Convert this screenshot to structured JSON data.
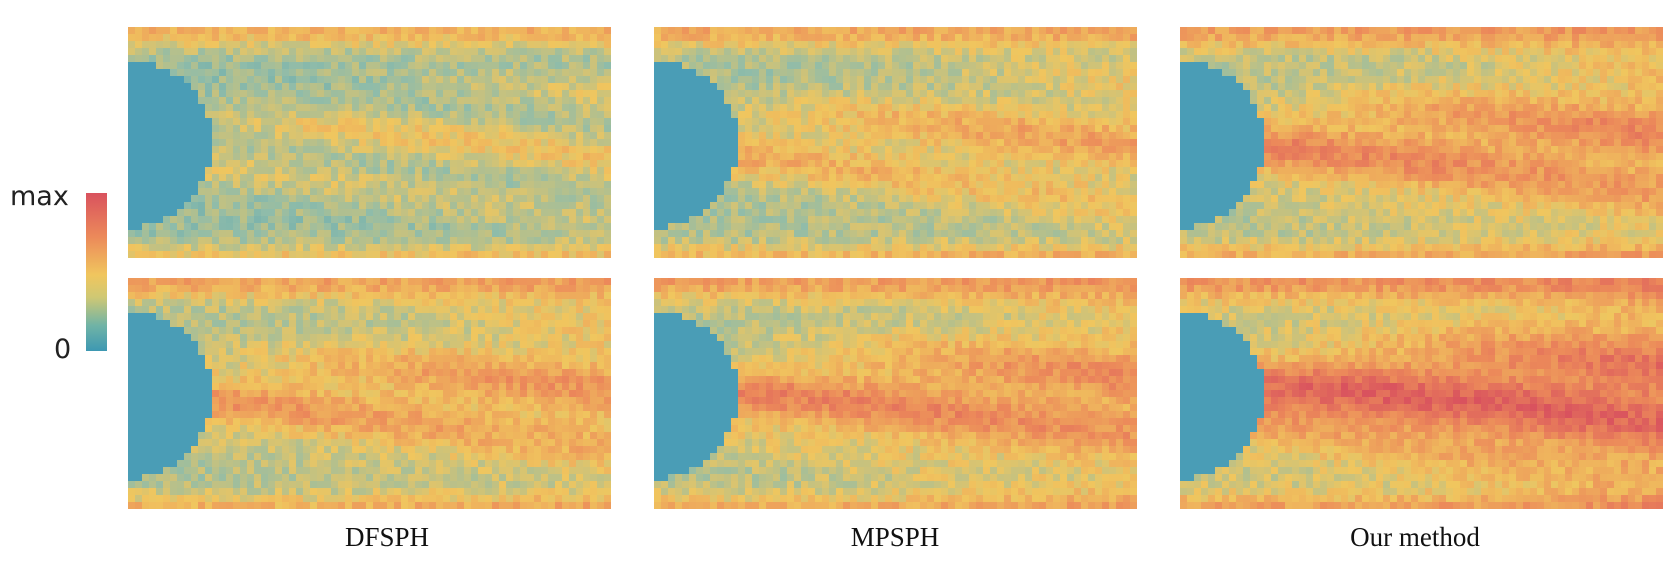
{
  "legend": {
    "max_label": "max",
    "min_label": "0",
    "colors": [
      "#3d98b2",
      "#8fbcaa",
      "#f0c65e",
      "#ec8a5a",
      "#d9525e"
    ]
  },
  "columns": [
    {
      "label": "DFSPH",
      "intensity": [
        0.15,
        0.45
      ]
    },
    {
      "label": "MPSPH",
      "intensity": [
        0.35,
        0.55
      ]
    },
    {
      "label": "Our method",
      "intensity": [
        0.55,
        0.8
      ]
    }
  ],
  "obstacle_color": "#4a9db6"
}
